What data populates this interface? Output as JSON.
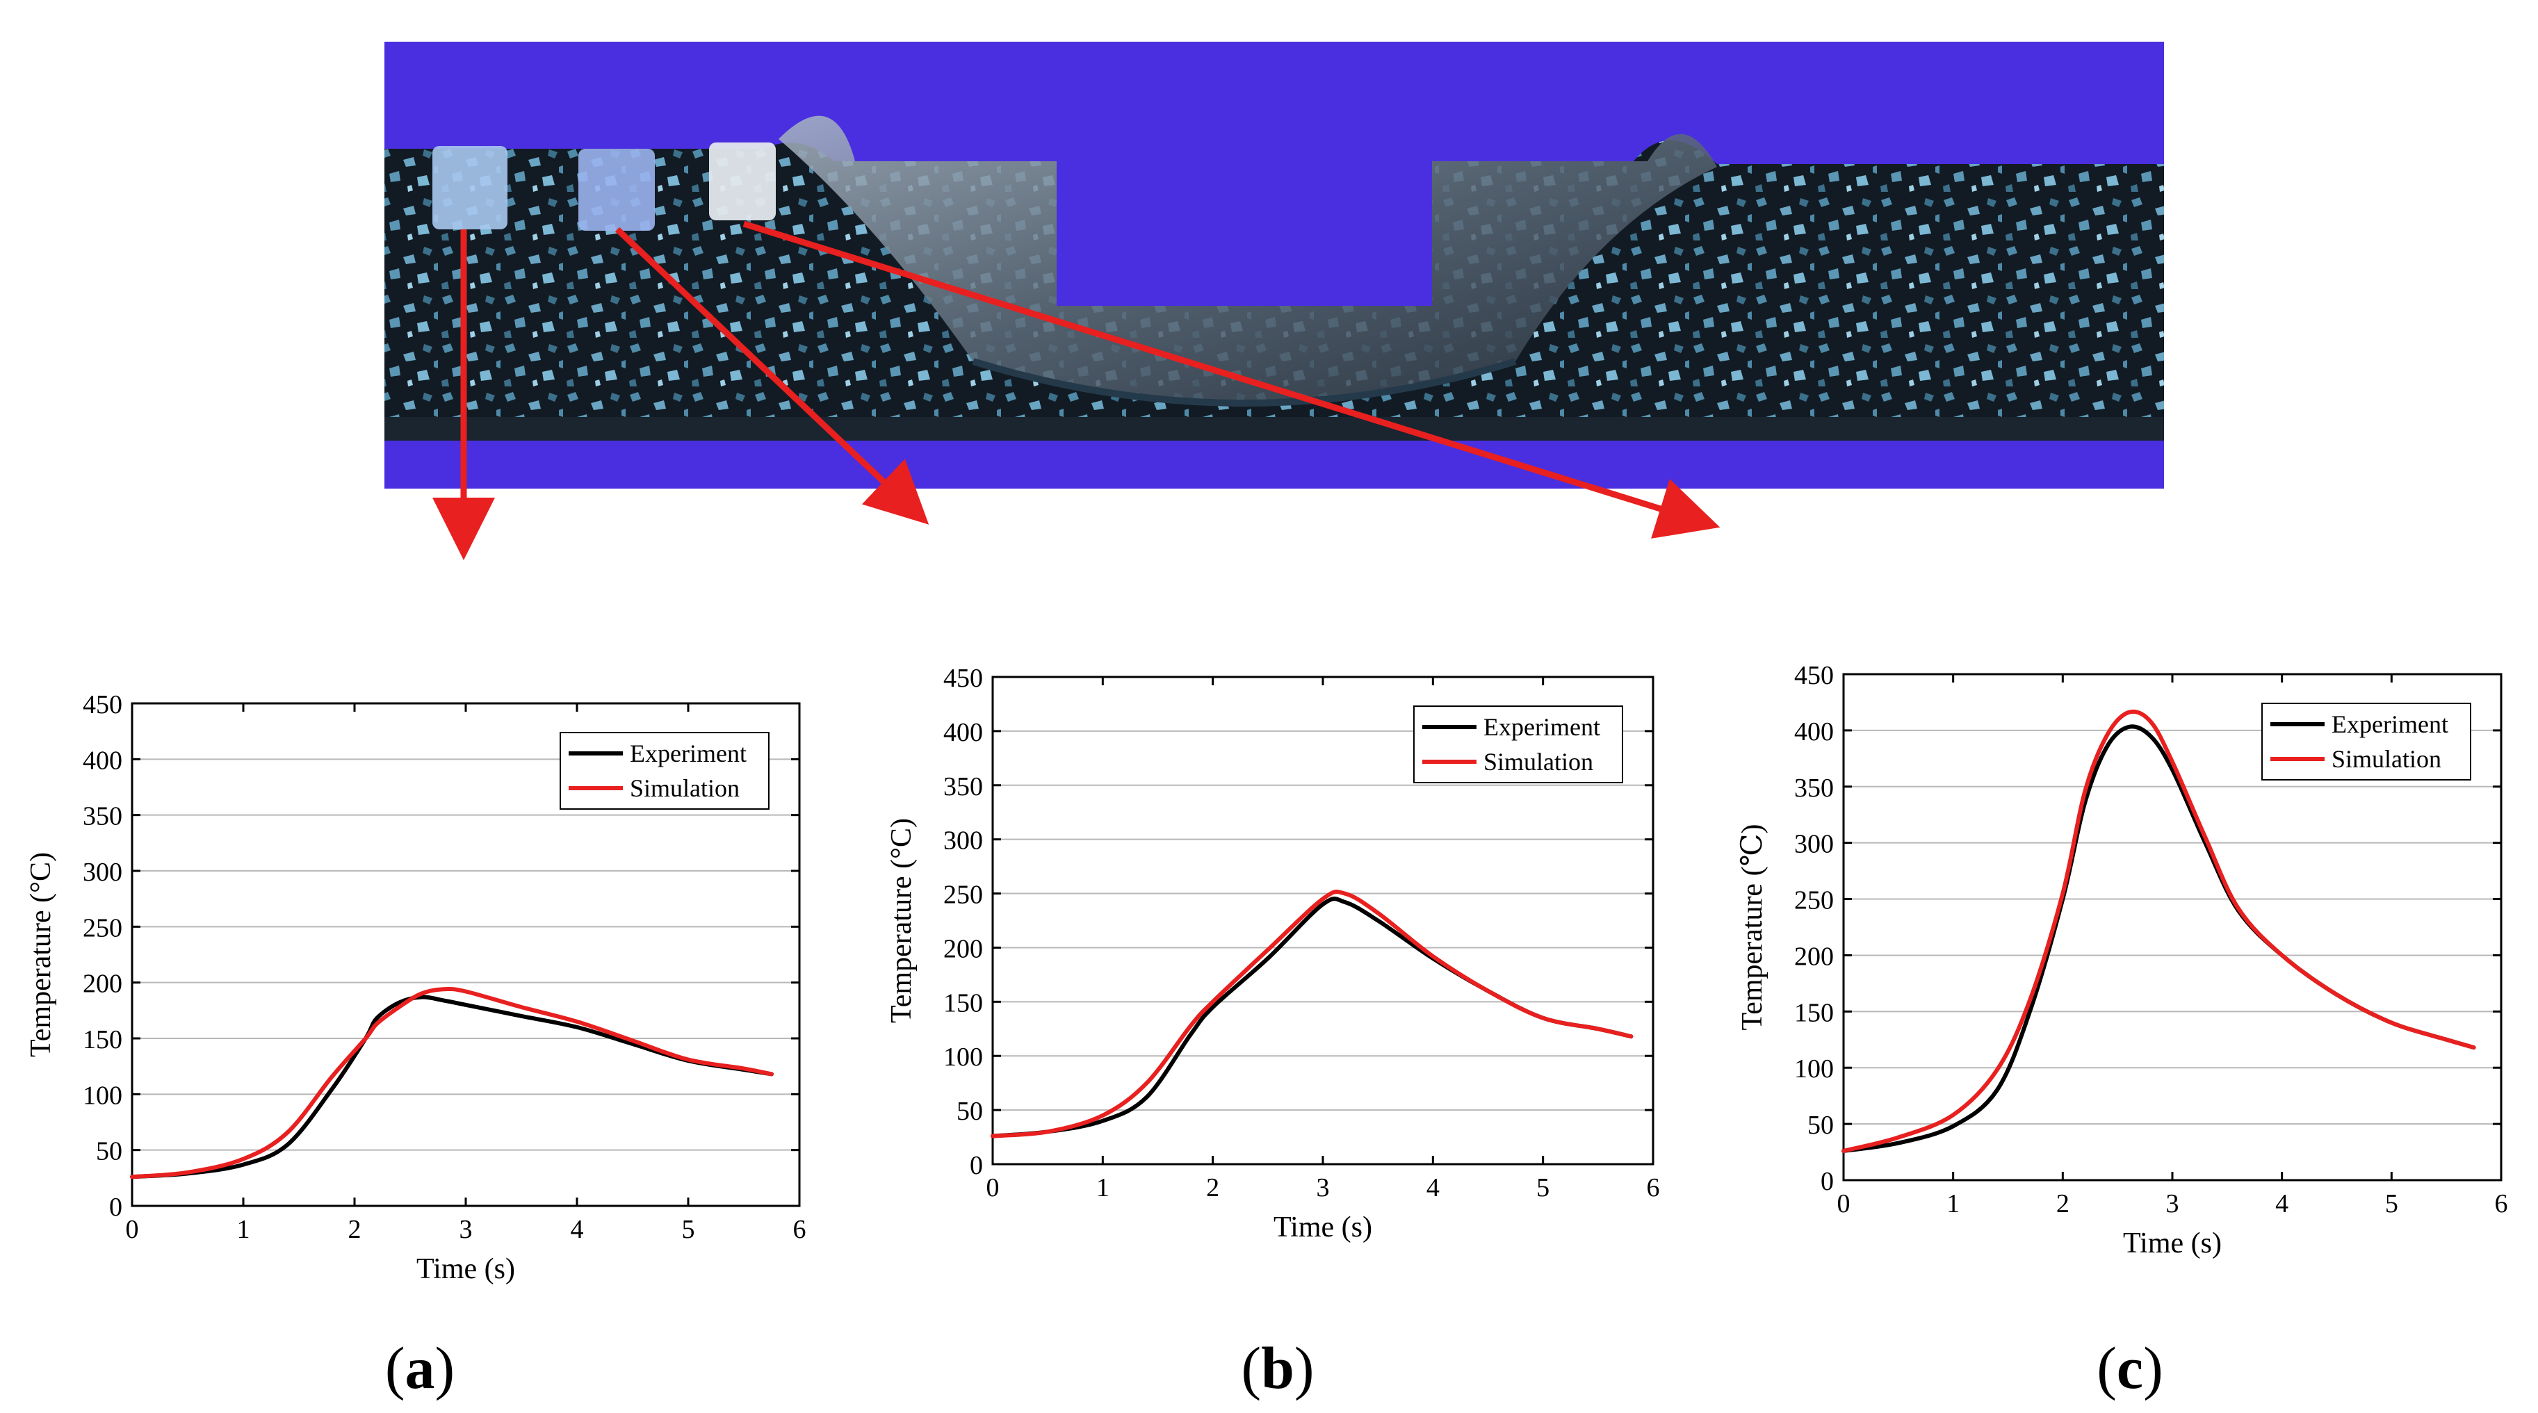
{
  "colors": {
    "background_blue": "#4a2fe0",
    "specimen_dark": "#111a22",
    "specimen_speckle": "#6aa6c4",
    "arrow_red": "#e8201f",
    "experiment_line": "#000000",
    "simulation_line": "#e8201f"
  },
  "panel_labels": [
    "a",
    "b",
    "c"
  ],
  "chart_data": [
    {
      "type": "line",
      "panel": "a",
      "xlabel": "Time (s)",
      "ylabel": "Temperature (°C)",
      "xlim": [
        0,
        6
      ],
      "ylim": [
        0,
        450
      ],
      "xticks": [
        "0",
        "1",
        "2",
        "3",
        "4",
        "5",
        "6"
      ],
      "yticks": [
        "0",
        "50",
        "100",
        "150",
        "200",
        "250",
        "300",
        "350",
        "400",
        "450"
      ],
      "grid": "horizontal",
      "legend_position": "top-right",
      "series": [
        {
          "name": "Experiment",
          "x": [
            0,
            0.5,
            1.0,
            1.4,
            1.8,
            2.1,
            2.2,
            2.4,
            2.6,
            2.8,
            3.0,
            3.5,
            4.0,
            4.5,
            5.0,
            5.5,
            5.75
          ],
          "y": [
            26,
            29,
            37,
            55,
            105,
            150,
            168,
            182,
            187,
            184,
            180,
            170,
            160,
            145,
            130,
            122,
            118
          ]
        },
        {
          "name": "Simulation",
          "x": [
            0,
            0.5,
            1.0,
            1.4,
            1.8,
            2.1,
            2.2,
            2.4,
            2.6,
            2.8,
            3.0,
            3.5,
            4.0,
            4.5,
            5.0,
            5.5,
            5.75
          ],
          "y": [
            26,
            30,
            42,
            66,
            116,
            150,
            163,
            178,
            190,
            194,
            192,
            178,
            165,
            148,
            131,
            123,
            118
          ]
        }
      ]
    },
    {
      "type": "line",
      "panel": "b",
      "xlabel": "Time (s)",
      "ylabel": "Temperature (°C)",
      "xlim": [
        0,
        6
      ],
      "ylim": [
        0,
        450
      ],
      "xticks": [
        "0",
        "1",
        "2",
        "3",
        "4",
        "5",
        "6"
      ],
      "yticks": [
        "0",
        "50",
        "100",
        "150",
        "200",
        "250",
        "300",
        "350",
        "400",
        "450"
      ],
      "grid": "horizontal",
      "legend_position": "top-right",
      "series": [
        {
          "name": "Experiment",
          "x": [
            0,
            0.5,
            1.0,
            1.4,
            1.8,
            2.0,
            2.5,
            3.0,
            3.2,
            3.5,
            4.0,
            4.5,
            5.0,
            5.5,
            5.8
          ],
          "y": [
            26,
            30,
            40,
            62,
            120,
            145,
            190,
            240,
            242,
            225,
            190,
            160,
            135,
            125,
            118
          ]
        },
        {
          "name": "Simulation",
          "x": [
            0,
            0.5,
            1.0,
            1.4,
            1.8,
            2.0,
            2.5,
            3.0,
            3.2,
            3.5,
            4.0,
            4.5,
            5.0,
            5.5,
            5.8
          ],
          "y": [
            26,
            30,
            45,
            75,
            128,
            150,
            198,
            245,
            250,
            232,
            192,
            160,
            135,
            125,
            118
          ]
        }
      ]
    },
    {
      "type": "line",
      "panel": "c",
      "xlabel": "Time (s)",
      "ylabel": "Temperature (℃)",
      "xlim": [
        0,
        6
      ],
      "ylim": [
        0,
        450
      ],
      "xticks": [
        "0",
        "1",
        "2",
        "3",
        "4",
        "5",
        "6"
      ],
      "yticks": [
        "0",
        "50",
        "100",
        "150",
        "200",
        "250",
        "300",
        "350",
        "400",
        "450"
      ],
      "grid": "horizontal",
      "legend_position": "top-right",
      "series": [
        {
          "name": "Experiment",
          "x": [
            0,
            0.5,
            1.0,
            1.4,
            1.7,
            2.0,
            2.2,
            2.4,
            2.6,
            2.8,
            3.0,
            3.3,
            3.6,
            4.0,
            4.5,
            5.0,
            5.5,
            5.75
          ],
          "y": [
            26,
            33,
            48,
            80,
            150,
            250,
            335,
            385,
            403,
            395,
            365,
            300,
            240,
            200,
            165,
            140,
            125,
            118
          ]
        },
        {
          "name": "Simulation",
          "x": [
            0,
            0.5,
            1.0,
            1.4,
            1.7,
            2.0,
            2.2,
            2.4,
            2.6,
            2.8,
            3.0,
            3.3,
            3.6,
            4.0,
            4.5,
            5.0,
            5.5,
            5.75
          ],
          "y": [
            26,
            38,
            58,
            98,
            160,
            255,
            345,
            395,
            416,
            408,
            372,
            305,
            242,
            200,
            165,
            140,
            125,
            118
          ]
        }
      ]
    }
  ]
}
